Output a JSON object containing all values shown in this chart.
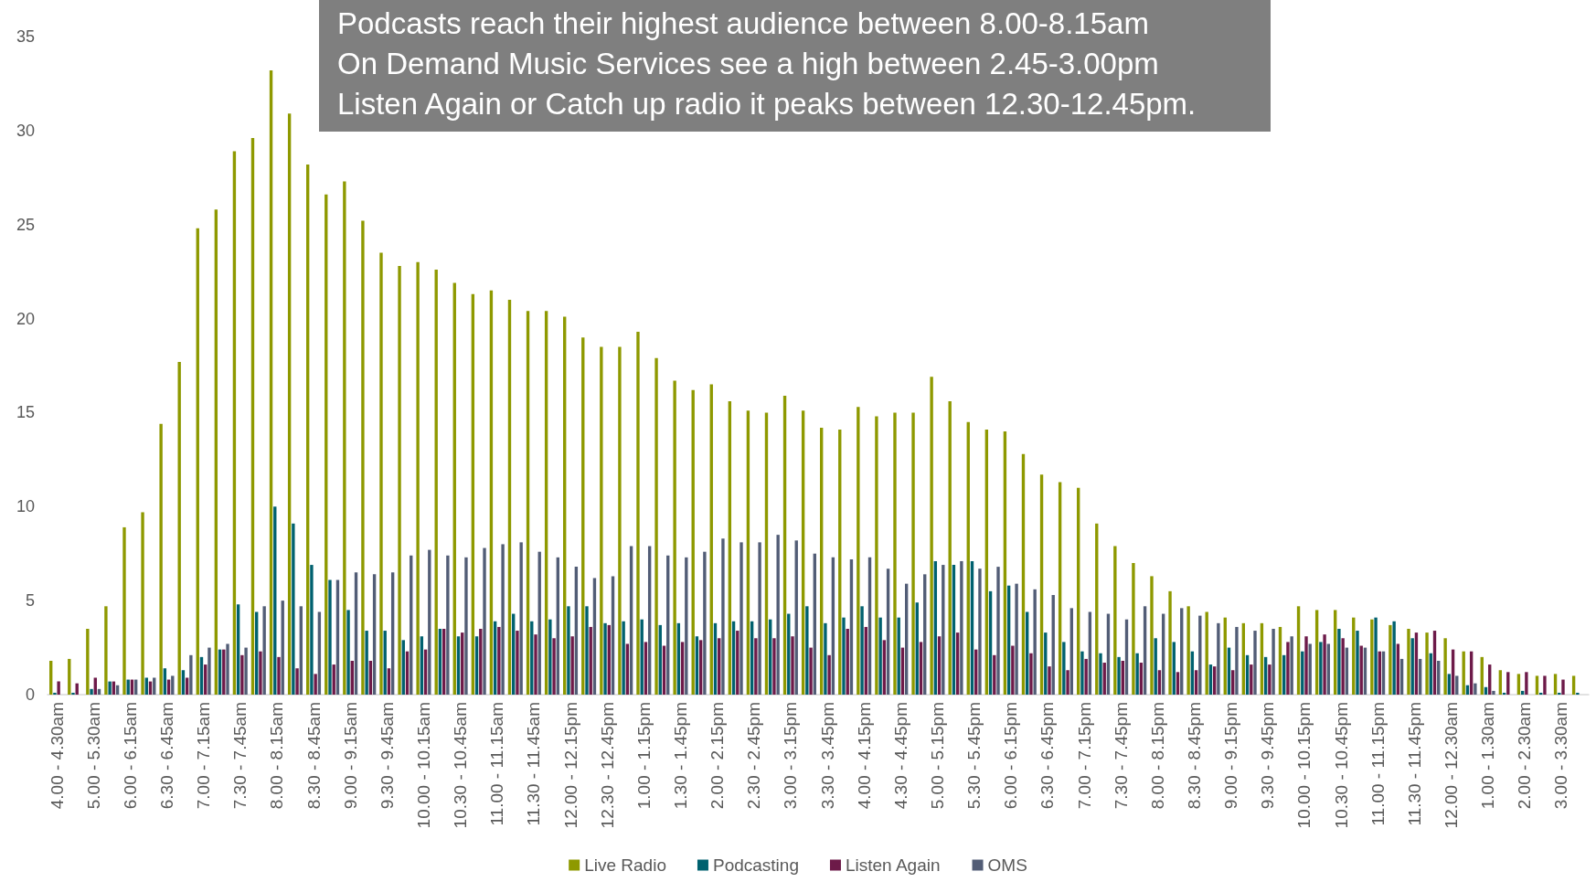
{
  "chart_data": {
    "type": "bar",
    "annotations": [
      "Podcasts reach their highest audience between 8.00-8.15am",
      "On Demand Music Services see a high between 2.45-3.00pm",
      "Listen Again or Catch up radio it peaks between 12.30-12.45pm."
    ],
    "categories": [
      "4.00 - 4.30am",
      null,
      "5.00 - 5.30am",
      null,
      "6.00 - 6.15am",
      null,
      "6.30 - 6.45am",
      null,
      "7.00 - 7.15am",
      null,
      "7.30 - 7.45am",
      null,
      "8.00 - 8.15am",
      null,
      "8.30 - 8.45am",
      null,
      "9.00 - 9.15am",
      null,
      "9.30 - 9.45am",
      null,
      "10.00 - 10.15am",
      null,
      "10.30 - 10.45am",
      null,
      "11.00 - 11.15am",
      null,
      "11.30 - 11.45am",
      null,
      "12.00 - 12.15pm",
      null,
      "12.30 - 12.45pm",
      null,
      "1.00 - 1.15pm",
      null,
      "1.30 - 1.45pm",
      null,
      "2.00 - 2.15pm",
      null,
      "2.30 - 2.45pm",
      null,
      "3.00 - 3.15pm",
      null,
      "3.30 - 3.45pm",
      null,
      "4.00 - 4.15pm",
      null,
      "4.30 - 4.45pm",
      null,
      "5.00 - 5.15pm",
      null,
      "5.30 - 5.45pm",
      null,
      "6.00 - 6.15pm",
      null,
      "6.30 - 6.45pm",
      null,
      "7.00 - 7.15pm",
      null,
      "7.30 - 7.45pm",
      null,
      "8.00 - 8.15pm",
      null,
      "8.30 - 8.45pm",
      null,
      "9.00 - 9.15pm",
      null,
      "9.30 - 9.45pm",
      null,
      "10.00 - 10.15pm",
      null,
      "10.30 - 10.45pm",
      null,
      "11.00 - 11.15pm",
      null,
      "11.30 - 11.45pm",
      null,
      "12.00 - 12.30am",
      null,
      "1.00 - 1.30am",
      null,
      "2.00 - 2.30am",
      null,
      "3.00 - 3.30am",
      null
    ],
    "series": [
      {
        "name": "Live Radio",
        "color": "#8e9900",
        "values": [
          1.8,
          1.9,
          3.5,
          4.7,
          8.9,
          9.7,
          14.4,
          17.7,
          24.8,
          25.8,
          28.9,
          29.6,
          33.2,
          30.9,
          28.2,
          26.6,
          27.3,
          25.2,
          23.5,
          22.8,
          23.0,
          22.6,
          21.9,
          21.3,
          21.5,
          21.0,
          20.4,
          20.4,
          20.1,
          19.0,
          18.5,
          18.5,
          19.3,
          17.9,
          16.7,
          16.2,
          16.5,
          15.6,
          15.1,
          15.0,
          15.9,
          15.1,
          14.2,
          14.1,
          15.3,
          14.8,
          15.0,
          15.0,
          16.9,
          15.6,
          14.5,
          14.1,
          14.0,
          12.8,
          11.7,
          11.3,
          11.0,
          9.1,
          7.9,
          7.0,
          6.3,
          5.5,
          4.7,
          4.4,
          4.1,
          3.8,
          3.8,
          3.6,
          4.7,
          4.5,
          4.5,
          4.1,
          4.0,
          3.7,
          3.5,
          3.3,
          3.0,
          2.3,
          2.0,
          1.3,
          1.1,
          1.0,
          1.1,
          1.0
        ]
      },
      {
        "name": "Podcasting",
        "color": "#00616f",
        "values": [
          0.1,
          0.1,
          0.3,
          0.7,
          0.8,
          0.9,
          1.4,
          1.3,
          2.0,
          2.4,
          4.8,
          4.4,
          10.0,
          9.1,
          6.9,
          6.1,
          4.5,
          3.4,
          3.4,
          2.9,
          3.1,
          3.5,
          3.1,
          3.1,
          3.9,
          4.3,
          3.9,
          4.0,
          4.7,
          4.7,
          3.8,
          3.9,
          4.0,
          3.7,
          3.8,
          3.1,
          3.8,
          3.9,
          3.9,
          4.0,
          4.3,
          4.7,
          3.8,
          4.1,
          4.7,
          4.1,
          4.1,
          4.9,
          7.1,
          6.9,
          7.1,
          5.5,
          5.8,
          4.4,
          3.3,
          2.8,
          2.3,
          2.2,
          2.0,
          2.2,
          3.0,
          2.8,
          2.3,
          1.6,
          2.5,
          2.1,
          2.0,
          2.1,
          2.3,
          2.8,
          3.5,
          3.4,
          4.1,
          3.9,
          3.0,
          2.2,
          1.1,
          0.5,
          0.4,
          0.1,
          0.2,
          0.1,
          0.1,
          0.1
        ]
      },
      {
        "name": "Listen Again",
        "color": "#6d1a49",
        "values": [
          0.7,
          0.6,
          0.9,
          0.7,
          0.8,
          0.7,
          0.8,
          0.9,
          1.6,
          2.4,
          2.1,
          2.3,
          2.0,
          1.4,
          1.1,
          1.6,
          1.8,
          1.8,
          1.4,
          2.3,
          2.4,
          3.5,
          3.3,
          3.5,
          3.6,
          3.4,
          3.2,
          3.0,
          3.1,
          3.6,
          3.7,
          2.7,
          2.8,
          2.6,
          2.8,
          2.9,
          3.0,
          3.4,
          3.0,
          3.0,
          3.1,
          2.5,
          2.1,
          3.5,
          3.6,
          2.9,
          2.5,
          2.8,
          3.1,
          3.3,
          2.4,
          2.1,
          2.6,
          2.2,
          1.5,
          1.3,
          1.9,
          1.7,
          1.8,
          1.7,
          1.3,
          1.2,
          1.3,
          1.5,
          1.3,
          1.6,
          1.6,
          2.8,
          3.1,
          3.2,
          3.0,
          2.6,
          2.3,
          2.7,
          3.3,
          3.4,
          2.4,
          2.3,
          1.6,
          1.2,
          1.2,
          1.0,
          0.8,
          0
        ]
      },
      {
        "name": "OMS",
        "color": "#525d76",
        "values": [
          0,
          0,
          0.3,
          0.5,
          0.8,
          0.9,
          1.0,
          2.1,
          2.5,
          2.7,
          2.5,
          4.7,
          5.0,
          4.7,
          4.4,
          6.1,
          6.5,
          6.4,
          6.5,
          7.4,
          7.7,
          7.4,
          7.3,
          7.8,
          8.0,
          8.1,
          7.6,
          7.3,
          6.8,
          6.2,
          6.3,
          7.9,
          7.9,
          7.4,
          7.3,
          7.6,
          8.3,
          8.1,
          8.1,
          8.5,
          8.2,
          7.5,
          7.3,
          7.2,
          7.3,
          6.7,
          5.9,
          6.4,
          6.9,
          7.1,
          6.7,
          6.8,
          5.9,
          5.6,
          5.3,
          4.6,
          4.4,
          4.3,
          4.0,
          4.7,
          4.3,
          4.6,
          4.2,
          3.8,
          3.6,
          3.4,
          3.5,
          3.1,
          2.7,
          2.7,
          2.5,
          2.5,
          2.3,
          1.9,
          1.9,
          1.8,
          1.0,
          0.6,
          0.2,
          0,
          0,
          0,
          0,
          0
        ]
      }
    ],
    "ylim": [
      0,
      35
    ],
    "yticks": [
      0,
      5,
      10,
      15,
      20,
      25,
      30,
      35
    ],
    "legend": "bottom"
  }
}
